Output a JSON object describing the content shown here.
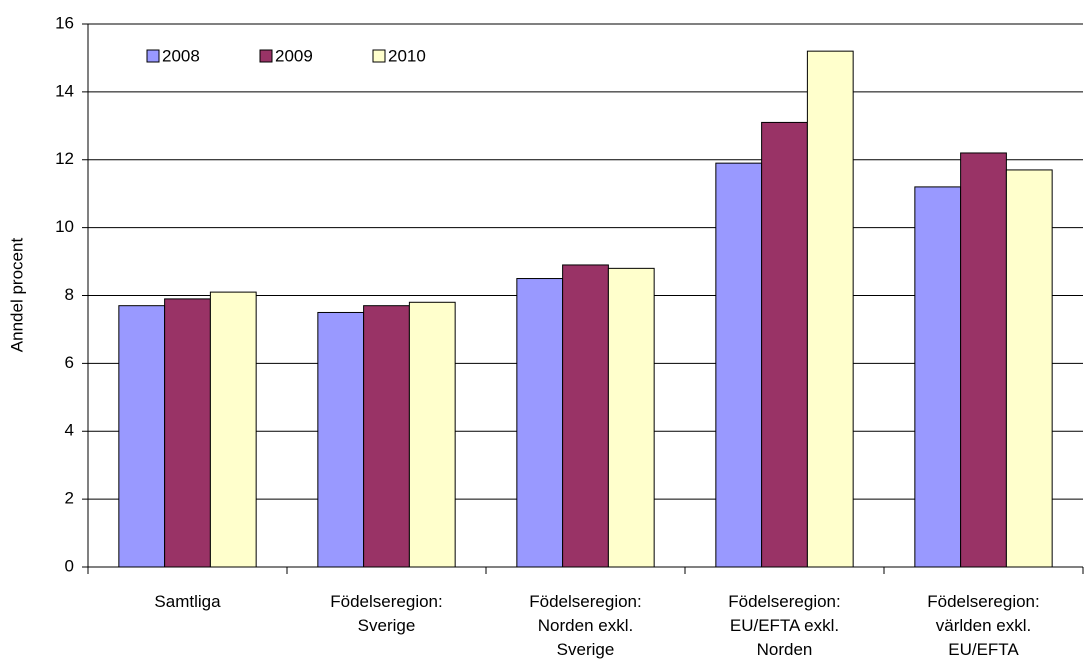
{
  "chart_data": {
    "type": "bar",
    "y_label": "Anndel procent",
    "categories": [
      [
        "Samtliga"
      ],
      [
        "Födelseregion:",
        "Sverige"
      ],
      [
        "Födelseregion:",
        "Norden exkl.",
        "Sverige"
      ],
      [
        "Födelseregion:",
        "EU/EFTA exkl.",
        "Norden"
      ],
      [
        "Födelseregion:",
        "världen exkl.",
        "EU/EFTA"
      ]
    ],
    "series": [
      {
        "name": "2008",
        "color": "#9999ff",
        "values": [
          7.7,
          7.5,
          8.5,
          11.9,
          11.2
        ]
      },
      {
        "name": "2009",
        "color": "#993366",
        "values": [
          7.9,
          7.7,
          8.9,
          13.1,
          12.2
        ]
      },
      {
        "name": "2010",
        "color": "#ffffcc",
        "values": [
          8.1,
          7.8,
          8.8,
          15.2,
          11.7
        ]
      }
    ],
    "ylim": [
      0,
      16
    ],
    "yticks": [
      0,
      2,
      4,
      6,
      8,
      10,
      12,
      14,
      16
    ],
    "grid": true,
    "legend": "top-left"
  }
}
